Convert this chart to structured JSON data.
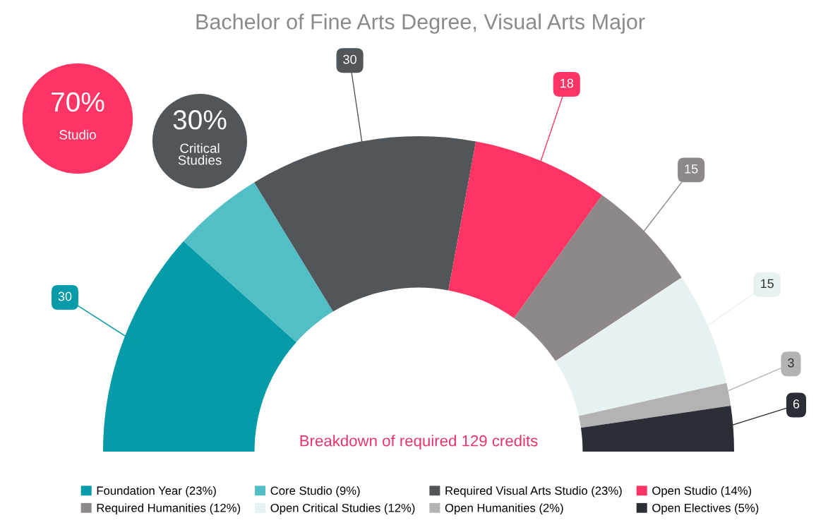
{
  "chart_data": {
    "type": "donut",
    "title": "Bachelor of Fine Arts Degree, Visual Arts Major",
    "categories": [
      "Foundation Year (23%)",
      "Core Studio (9%)",
      "Required Visual Arts Studio (23%)",
      "Open Studio (14%)",
      "Required Humanities (12%)",
      "Open Critical Studies (12%)",
      "Open Humanities (2%)",
      "Open Electives (5%)"
    ],
    "values": [
      30,
      12,
      30,
      18,
      15,
      15,
      3,
      6
    ],
    "value_labels": [
      "30",
      null,
      "30",
      "18",
      "15",
      "15",
      "3",
      "6"
    ],
    "colors": [
      "#069ba8",
      "#52bec6",
      "#505659",
      "#fd3464",
      "#8e8889",
      "#e8f1f1",
      "#b3b3b3",
      "#2b2f35"
    ],
    "legend": "bottom",
    "annotations": [
      "70%\nStudio",
      "30%\nCritical\nStudies",
      "Breakdown of required 129 credits"
    ]
  }
}
